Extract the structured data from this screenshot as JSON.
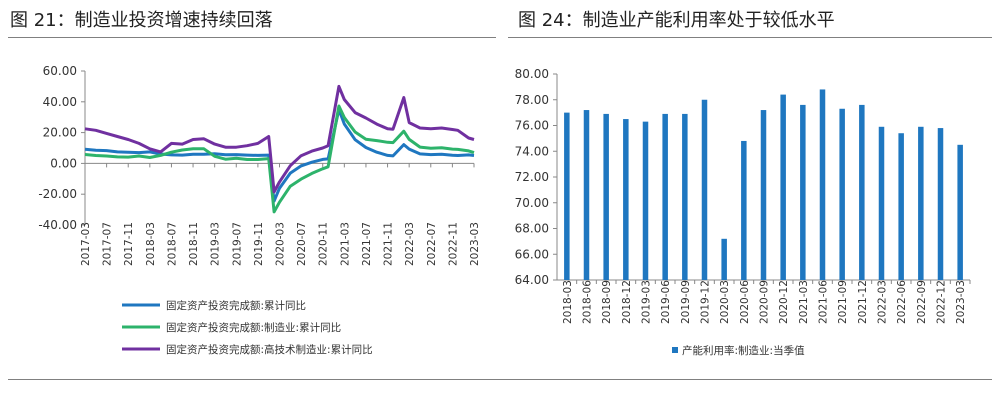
{
  "titles": {
    "left": "图 21：制造业投资增速持续回落",
    "right": "图 24：制造业产能利用率处于较低水平"
  },
  "chart_data": [
    {
      "type": "line",
      "y_ticks": [
        "60.00",
        "40.00",
        "20.00",
        "0.00",
        "-20.00",
        "-40.00"
      ],
      "ylim": [
        -40,
        60
      ],
      "x_ticks": [
        "2017-03",
        "2017-07",
        "2017-11",
        "2018-03",
        "2018-07",
        "2018-11",
        "2019-03",
        "2019-07",
        "2019-11",
        "2020-03",
        "2020-07",
        "2020-11",
        "2021-03",
        "2021-07",
        "2021-11",
        "2022-03",
        "2022-07",
        "2022-11",
        "2023-03"
      ],
      "legend_position": "bottom",
      "grid": false,
      "series": [
        {
          "name": "固定资产投资完成额:累计同比",
          "color": "#1F77C0",
          "points": [
            [
              "2017-03",
              9.2
            ],
            [
              "2017-05",
              8.6
            ],
            [
              "2017-07",
              8.3
            ],
            [
              "2017-09",
              7.5
            ],
            [
              "2017-11",
              7.2
            ],
            [
              "2018-01",
              7.0
            ],
            [
              "2018-03",
              7.5
            ],
            [
              "2018-05",
              6.1
            ],
            [
              "2018-07",
              5.5
            ],
            [
              "2018-09",
              5.4
            ],
            [
              "2018-11",
              5.9
            ],
            [
              "2019-01",
              5.9
            ],
            [
              "2019-03",
              6.3
            ],
            [
              "2019-05",
              5.6
            ],
            [
              "2019-07",
              5.7
            ],
            [
              "2019-09",
              5.4
            ],
            [
              "2019-11",
              5.2
            ],
            [
              "2020-01",
              5.4
            ],
            [
              "2020-02",
              -24.5
            ],
            [
              "2020-03",
              -16.1
            ],
            [
              "2020-05",
              -6.3
            ],
            [
              "2020-07",
              -1.6
            ],
            [
              "2020-09",
              0.8
            ],
            [
              "2020-11",
              2.6
            ],
            [
              "2020-12",
              2.9
            ],
            [
              "2021-02",
              35.0
            ],
            [
              "2021-03",
              25.6
            ],
            [
              "2021-05",
              15.4
            ],
            [
              "2021-07",
              10.3
            ],
            [
              "2021-09",
              7.3
            ],
            [
              "2021-11",
              5.2
            ],
            [
              "2021-12",
              4.9
            ],
            [
              "2022-02",
              12.2
            ],
            [
              "2022-03",
              9.3
            ],
            [
              "2022-05",
              6.2
            ],
            [
              "2022-07",
              5.7
            ],
            [
              "2022-09",
              5.9
            ],
            [
              "2022-11",
              5.3
            ],
            [
              "2022-12",
              5.1
            ],
            [
              "2023-02",
              5.5
            ],
            [
              "2023-03",
              5.1
            ]
          ]
        },
        {
          "name": "固定资产投资完成额:制造业:累计同比",
          "color": "#2DB36B",
          "points": [
            [
              "2017-03",
              5.8
            ],
            [
              "2017-05",
              5.1
            ],
            [
              "2017-07",
              4.8
            ],
            [
              "2017-09",
              4.2
            ],
            [
              "2017-11",
              4.1
            ],
            [
              "2018-01",
              4.8
            ],
            [
              "2018-03",
              3.8
            ],
            [
              "2018-05",
              5.2
            ],
            [
              "2018-07",
              7.3
            ],
            [
              "2018-09",
              8.7
            ],
            [
              "2018-11",
              9.5
            ],
            [
              "2019-01",
              9.5
            ],
            [
              "2019-03",
              4.6
            ],
            [
              "2019-05",
              2.7
            ],
            [
              "2019-07",
              3.3
            ],
            [
              "2019-09",
              2.5
            ],
            [
              "2019-11",
              2.5
            ],
            [
              "2020-01",
              3.1
            ],
            [
              "2020-02",
              -31.5
            ],
            [
              "2020-03",
              -25.2
            ],
            [
              "2020-05",
              -14.8
            ],
            [
              "2020-07",
              -10.2
            ],
            [
              "2020-09",
              -6.5
            ],
            [
              "2020-11",
              -3.5
            ],
            [
              "2020-12",
              -2.2
            ],
            [
              "2021-02",
              37.3
            ],
            [
              "2021-03",
              29.8
            ],
            [
              "2021-05",
              20.4
            ],
            [
              "2021-07",
              15.7
            ],
            [
              "2021-09",
              14.8
            ],
            [
              "2021-11",
              13.7
            ],
            [
              "2021-12",
              13.5
            ],
            [
              "2022-02",
              20.9
            ],
            [
              "2022-03",
              15.6
            ],
            [
              "2022-05",
              10.6
            ],
            [
              "2022-07",
              9.9
            ],
            [
              "2022-09",
              10.1
            ],
            [
              "2022-11",
              9.3
            ],
            [
              "2022-12",
              9.1
            ],
            [
              "2023-02",
              8.1
            ],
            [
              "2023-03",
              7.0
            ]
          ]
        },
        {
          "name": "固定资产投资完成额:高技术制造业:累计同比",
          "color": "#7030A0",
          "points": [
            [
              "2017-03",
              22.5
            ],
            [
              "2017-05",
              21.5
            ],
            [
              "2017-07",
              19.5
            ],
            [
              "2017-09",
              17.5
            ],
            [
              "2017-11",
              15.5
            ],
            [
              "2018-01",
              13.0
            ],
            [
              "2018-03",
              9.5
            ],
            [
              "2018-05",
              7.5
            ],
            [
              "2018-07",
              13.0
            ],
            [
              "2018-09",
              12.5
            ],
            [
              "2018-11",
              15.5
            ],
            [
              "2019-01",
              16.0
            ],
            [
              "2019-03",
              12.5
            ],
            [
              "2019-05",
              10.5
            ],
            [
              "2019-07",
              10.5
            ],
            [
              "2019-09",
              11.5
            ],
            [
              "2019-11",
              13.0
            ],
            [
              "2020-01",
              17.5
            ],
            [
              "2020-02",
              -18.5
            ],
            [
              "2020-03",
              -12.0
            ],
            [
              "2020-05",
              -1.5
            ],
            [
              "2020-07",
              5.0
            ],
            [
              "2020-09",
              8.0
            ],
            [
              "2020-11",
              10.0
            ],
            [
              "2020-12",
              11.5
            ],
            [
              "2021-02",
              50.0
            ],
            [
              "2021-03",
              41.5
            ],
            [
              "2021-05",
              33.0
            ],
            [
              "2021-07",
              29.5
            ],
            [
              "2021-09",
              25.5
            ],
            [
              "2021-11",
              22.5
            ],
            [
              "2021-12",
              22.2
            ],
            [
              "2022-02",
              42.7
            ],
            [
              "2022-03",
              26.5
            ],
            [
              "2022-05",
              23.0
            ],
            [
              "2022-07",
              22.5
            ],
            [
              "2022-09",
              23.0
            ],
            [
              "2022-11",
              22.0
            ],
            [
              "2022-12",
              21.5
            ],
            [
              "2023-02",
              16.5
            ],
            [
              "2023-03",
              15.5
            ]
          ]
        }
      ]
    },
    {
      "type": "bar",
      "y_ticks": [
        "80.00",
        "78.00",
        "76.00",
        "74.00",
        "72.00",
        "70.00",
        "68.00",
        "66.00",
        "64.00"
      ],
      "ylim": [
        64,
        80
      ],
      "legend_position": "bottom",
      "grid": false,
      "categories": [
        "2018-03",
        "2018-06",
        "2018-09",
        "2018-12",
        "2019-03",
        "2019-06",
        "2019-09",
        "2019-12",
        "2020-03",
        "2020-06",
        "2020-09",
        "2020-12",
        "2021-03",
        "2021-06",
        "2021-09",
        "2021-12",
        "2022-03",
        "2022-06",
        "2022-09",
        "2022-12",
        "2023-03"
      ],
      "series": [
        {
          "name": "产能利用率:制造业:当季值",
          "color": "#1F77C0",
          "values": [
            77.0,
            77.2,
            76.9,
            76.5,
            76.3,
            76.9,
            76.9,
            78.0,
            67.2,
            74.8,
            77.2,
            78.4,
            77.6,
            78.8,
            77.3,
            77.6,
            75.9,
            75.4,
            75.9,
            75.8,
            74.5
          ]
        }
      ]
    }
  ]
}
